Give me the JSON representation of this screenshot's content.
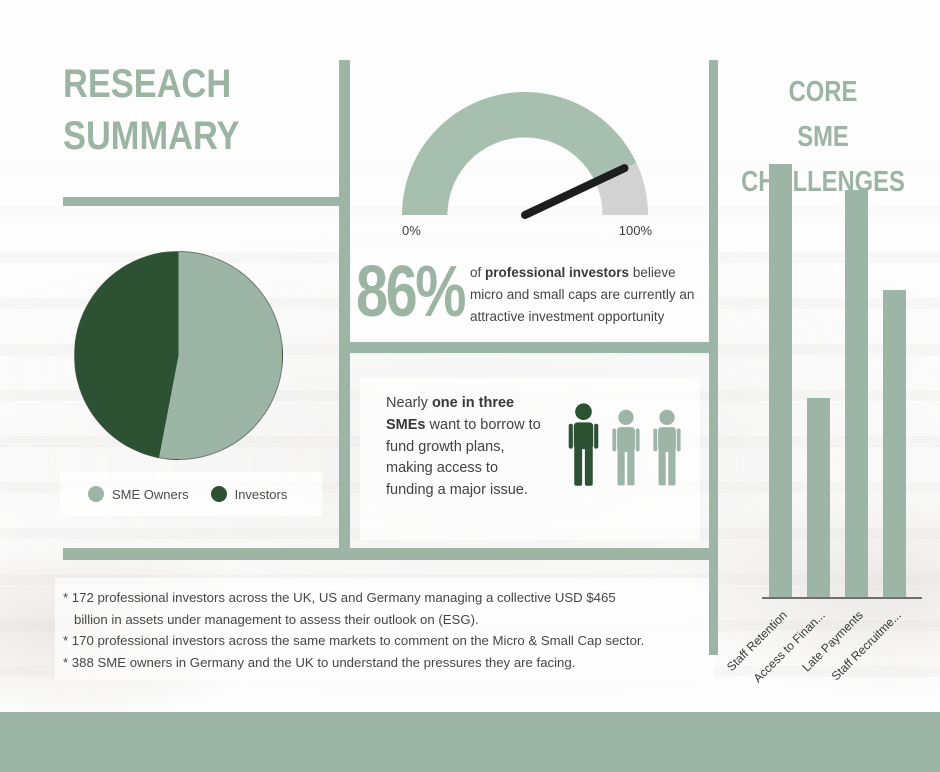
{
  "colors": {
    "sage": "#9db5a6",
    "gauge_fill": "#a6bfae",
    "gauge_remainder": "#d2d2d2",
    "dark_green": "#2d5233",
    "needle": "#1d1d1d",
    "footer_band": "#9db5a6"
  },
  "header": {
    "title_line1": "RESEACH",
    "title_line2": "SUMMARY"
  },
  "investor_stat": {
    "gauge_min_label": "0%",
    "gauge_max_label": "100%",
    "value": "86%",
    "text_prefix": "of ",
    "text_bold": "professional investors",
    "text_rest": " believe micro and small caps are currently an attractive investment opportunity"
  },
  "pie_section": {
    "legend": [
      {
        "label": "SME Owners",
        "color": "#9db5a6"
      },
      {
        "label": "Investors",
        "color": "#2d5233"
      }
    ]
  },
  "borrow_stat": {
    "text_prefix": "Nearly ",
    "text_bold": "one in three SMEs",
    "text_rest": " want to borrow to fund growth plans, making access to funding a major issue.",
    "person_colors": [
      "#2d5233",
      "#9db5a6",
      "#9db5a6"
    ]
  },
  "bar_section": {
    "title_line1": "CORE",
    "title_line2": "SME CHALLENGES"
  },
  "research_notes": {
    "lines": [
      "* 172 professional investors across the UK, US and Germany managing a collective USD $465",
      "billion in assets under management to assess their outlook on (ESG).",
      "* 170 professional investors across the same markets to comment on the Micro & Small Cap sector.",
      "* 388 SME owners in Germany and the UK to understand the pressures they are facing."
    ]
  },
  "chart_data": [
    {
      "type": "gauge",
      "value_pct": 86,
      "min_label": "0%",
      "max_label": "100%",
      "fill_color": "#a6bfae",
      "remainder_color": "#d2d2d2",
      "needle_color": "#1d1d1d",
      "range": [
        0,
        100
      ]
    },
    {
      "type": "pie",
      "slices": [
        {
          "label": "SME Owners",
          "value_pct": 53,
          "color": "#9db5a6"
        },
        {
          "label": "Investors",
          "value_pct": 47,
          "color": "#2d5233"
        }
      ],
      "legend_position": "bottom"
    },
    {
      "type": "bar",
      "title": "CORE SME CHALLENGES",
      "categories": [
        "Staff Retention",
        "Access to Finan...",
        "Late Payments",
        "Staff Recruitme..."
      ],
      "values_relative_pct": [
        100,
        46,
        94,
        71
      ],
      "bar_color": "#9db5a6",
      "x_labels_rotation_deg": -45,
      "y_axis_visible": false,
      "ylim": [
        0,
        100
      ]
    }
  ]
}
